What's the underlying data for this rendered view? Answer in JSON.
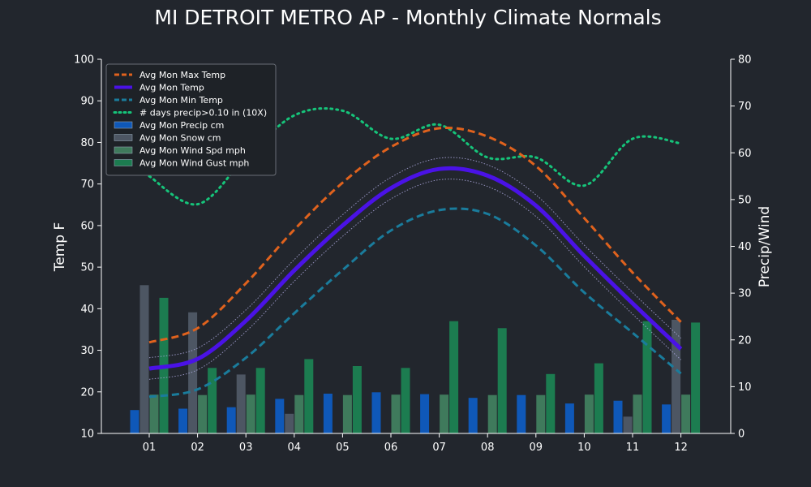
{
  "chart_data": {
    "type": "bar+line",
    "title": "MI DETROIT METRO AP - Monthly Climate Normals",
    "ylabel_left": "Temp F",
    "ylabel_right": "Precip/Wind",
    "ylim_left": [
      10,
      100
    ],
    "ylim_right": [
      0,
      80
    ],
    "yticks_left": [
      10,
      20,
      30,
      40,
      50,
      60,
      70,
      80,
      90,
      100
    ],
    "yticks_right": [
      0,
      10,
      20,
      30,
      40,
      50,
      60,
      70,
      80
    ],
    "categories": [
      "01",
      "02",
      "03",
      "04",
      "05",
      "06",
      "07",
      "08",
      "09",
      "10",
      "11",
      "12"
    ],
    "grid": false,
    "legend_position": "top-left",
    "colors": {
      "background": "#22262d",
      "max_temp": "#e0621d",
      "avg_temp": "#4a12e6",
      "min_temp": "#1a7c9c",
      "days_precip": "#16c47a",
      "precip": "#0f58b8",
      "snow": "#4d5663",
      "wind_spd": "#3f7a5c",
      "wind_gust": "#1c7c50",
      "band": "#a8a4d8"
    },
    "line_series": [
      {
        "name": "Avg Mon Max Temp",
        "axis": "left",
        "style": "dashed",
        "values": [
          31.9,
          35.3,
          46.1,
          59.0,
          70.3,
          78.9,
          83.4,
          81.4,
          74.3,
          61.8,
          48.7,
          36.8
        ]
      },
      {
        "name": "Avg Mon Temp",
        "axis": "left",
        "style": "solid",
        "values": [
          25.6,
          27.9,
          37.1,
          49.2,
          60.0,
          69.0,
          73.6,
          72.0,
          64.8,
          52.7,
          41.3,
          30.3
        ]
      },
      {
        "name": "Avg Mon Min Temp",
        "axis": "left",
        "style": "dashed",
        "values": [
          18.8,
          20.6,
          28.2,
          38.9,
          49.3,
          58.8,
          63.7,
          62.8,
          55.2,
          43.9,
          34.2,
          24.4
        ]
      },
      {
        "name": "# days precip>0.10 in (10X)",
        "axis": "right",
        "style": "dotted",
        "values": [
          55,
          49,
          59,
          68,
          69,
          63,
          66,
          59,
          59,
          53,
          63,
          62
        ]
      }
    ],
    "bar_series": [
      {
        "name": "Avg Mon Precip cm",
        "axis": "right",
        "values": [
          5.0,
          5.3,
          5.6,
          7.4,
          8.5,
          8.8,
          8.4,
          7.6,
          8.2,
          6.4,
          7.0,
          6.2
        ]
      },
      {
        "name": "Avg Mon Snow cm",
        "axis": "right",
        "values": [
          31.7,
          25.9,
          12.6,
          4.2,
          0,
          0,
          0,
          0,
          0,
          0.1,
          3.6,
          24.3
        ]
      },
      {
        "name": "Avg Mon Wind Spd mph",
        "axis": "right",
        "values": [
          8.3,
          8.2,
          8.3,
          8.2,
          8.2,
          8.3,
          8.3,
          8.2,
          8.2,
          8.3,
          8.3,
          8.3
        ]
      },
      {
        "name": "Avg Mon Wind Gust mph",
        "axis": "right",
        "values": [
          29.0,
          14.0,
          14.0,
          15.9,
          14.4,
          14.0,
          24.0,
          22.5,
          12.7,
          15.0,
          24.0,
          23.7
        ]
      }
    ]
  }
}
